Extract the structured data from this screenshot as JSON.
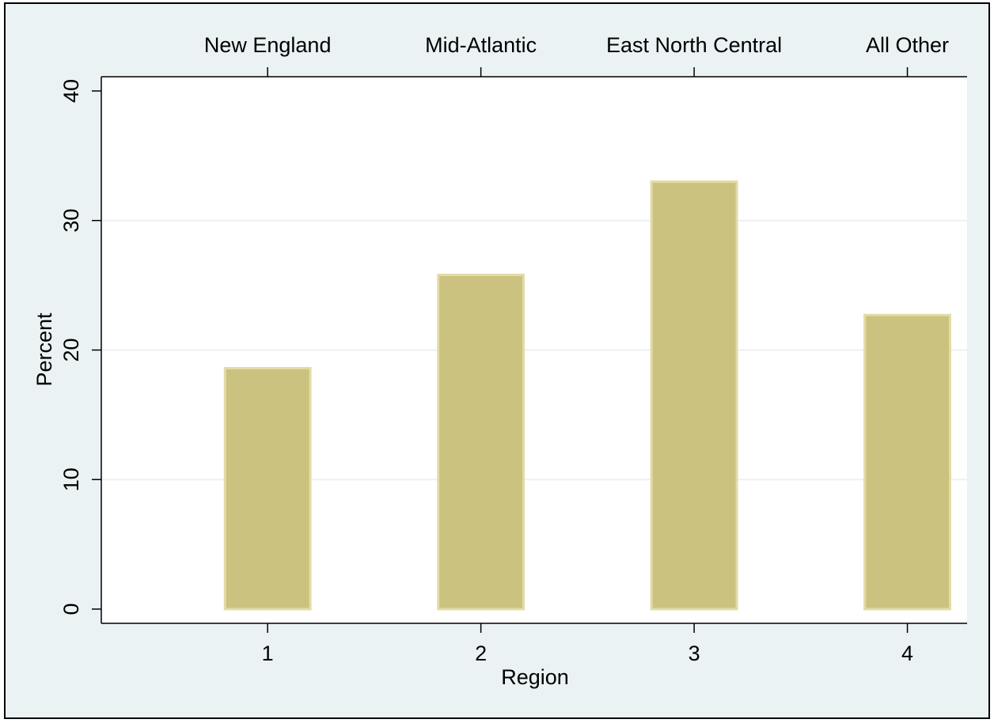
{
  "chart_data": {
    "type": "bar",
    "x_label": "Region",
    "y_label": "Percent",
    "x": [
      1,
      2,
      3,
      4
    ],
    "values": [
      18.6,
      25.8,
      33.0,
      22.7
    ],
    "top_labels": [
      "New England",
      "Mid-Atlantic",
      "East North Central",
      "All Other"
    ],
    "color": "#cbc27f",
    "xlim": [
      0.22,
      4.28
    ],
    "xticks": [
      1,
      2,
      3,
      4
    ],
    "ylim": [
      -1.1,
      41.1
    ],
    "yticks": [
      0,
      10,
      20,
      30,
      40
    ],
    "grid": true
  }
}
